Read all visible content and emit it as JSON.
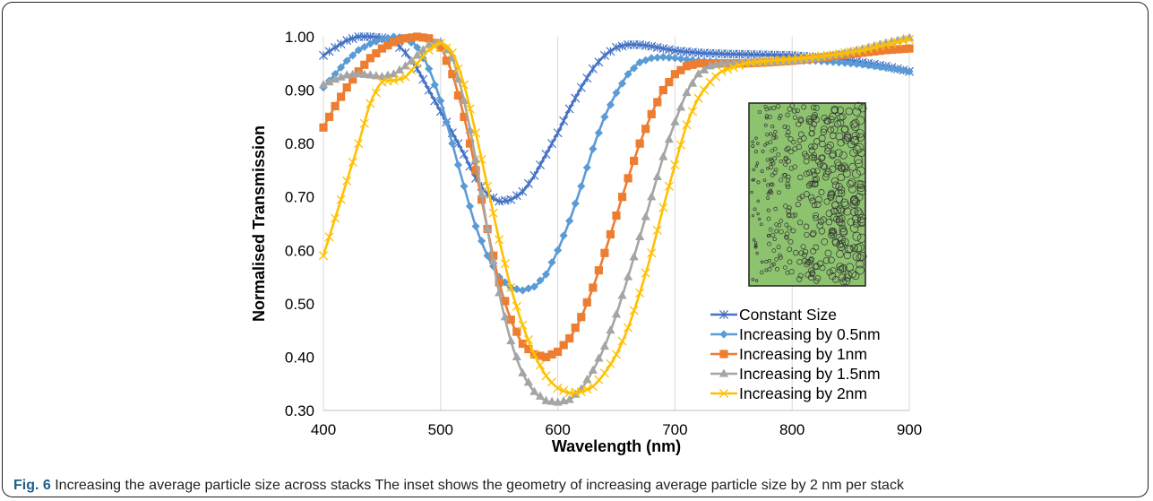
{
  "chart_data": {
    "type": "line",
    "title": "",
    "xlabel": "Wavelength (nm)",
    "ylabel": "Normalised Transmission",
    "xlim": [
      400,
      900
    ],
    "ylim": [
      0.3,
      1.0
    ],
    "x_ticks": [
      "400",
      "500",
      "600",
      "700",
      "800",
      "900"
    ],
    "y_ticks": [
      "0.30",
      "0.40",
      "0.50",
      "0.60",
      "0.70",
      "0.80",
      "0.90",
      "1.00"
    ],
    "grid": "vertical",
    "legend_position": "bottom-right",
    "series": [
      {
        "name": "Constant Size",
        "color": "#4472C4",
        "marker": "asterisk",
        "points": [
          [
            400,
            0.965
          ],
          [
            410,
            0.98
          ],
          [
            420,
            0.993
          ],
          [
            430,
            1.0
          ],
          [
            440,
            1.0
          ],
          [
            450,
            0.998
          ],
          [
            460,
            0.99
          ],
          [
            470,
            0.97
          ],
          [
            480,
            0.94
          ],
          [
            490,
            0.9
          ],
          [
            500,
            0.86
          ],
          [
            510,
            0.82
          ],
          [
            520,
            0.78
          ],
          [
            530,
            0.735
          ],
          [
            540,
            0.705
          ],
          [
            550,
            0.692
          ],
          [
            560,
            0.695
          ],
          [
            570,
            0.71
          ],
          [
            580,
            0.74
          ],
          [
            590,
            0.78
          ],
          [
            600,
            0.82
          ],
          [
            610,
            0.865
          ],
          [
            620,
            0.905
          ],
          [
            630,
            0.94
          ],
          [
            640,
            0.965
          ],
          [
            650,
            0.98
          ],
          [
            660,
            0.985
          ],
          [
            670,
            0.985
          ],
          [
            680,
            0.982
          ],
          [
            690,
            0.978
          ],
          [
            700,
            0.974
          ],
          [
            720,
            0.97
          ],
          [
            740,
            0.968
          ],
          [
            760,
            0.967
          ],
          [
            780,
            0.966
          ],
          [
            800,
            0.965
          ],
          [
            820,
            0.962
          ],
          [
            840,
            0.958
          ],
          [
            860,
            0.952
          ],
          [
            880,
            0.945
          ],
          [
            900,
            0.935
          ]
        ]
      },
      {
        "name": "Increasing by 0.5nm",
        "color": "#5B9BD5",
        "marker": "diamond",
        "points": [
          [
            400,
            0.905
          ],
          [
            410,
            0.93
          ],
          [
            420,
            0.955
          ],
          [
            430,
            0.975
          ],
          [
            440,
            0.987
          ],
          [
            450,
            0.995
          ],
          [
            460,
            1.0
          ],
          [
            470,
            0.998
          ],
          [
            480,
            0.98
          ],
          [
            490,
            0.94
          ],
          [
            500,
            0.88
          ],
          [
            510,
            0.8
          ],
          [
            520,
            0.72
          ],
          [
            530,
            0.645
          ],
          [
            540,
            0.59
          ],
          [
            550,
            0.55
          ],
          [
            560,
            0.53
          ],
          [
            570,
            0.525
          ],
          [
            580,
            0.532
          ],
          [
            590,
            0.555
          ],
          [
            600,
            0.6
          ],
          [
            610,
            0.655
          ],
          [
            620,
            0.72
          ],
          [
            630,
            0.79
          ],
          [
            640,
            0.85
          ],
          [
            650,
            0.895
          ],
          [
            660,
            0.93
          ],
          [
            670,
            0.952
          ],
          [
            680,
            0.96
          ],
          [
            690,
            0.962
          ],
          [
            700,
            0.96
          ],
          [
            720,
            0.955
          ],
          [
            740,
            0.952
          ],
          [
            760,
            0.952
          ],
          [
            780,
            0.953
          ],
          [
            800,
            0.955
          ],
          [
            820,
            0.955
          ],
          [
            840,
            0.952
          ],
          [
            860,
            0.948
          ],
          [
            880,
            0.942
          ],
          [
            900,
            0.935
          ]
        ]
      },
      {
        "name": "Increasing by 1nm",
        "color": "#ED7D31",
        "marker": "square",
        "points": [
          [
            400,
            0.83
          ],
          [
            410,
            0.87
          ],
          [
            420,
            0.905
          ],
          [
            430,
            0.935
          ],
          [
            440,
            0.96
          ],
          [
            450,
            0.978
          ],
          [
            460,
            0.99
          ],
          [
            470,
            0.997
          ],
          [
            480,
            1.0
          ],
          [
            490,
            0.997
          ],
          [
            500,
            0.98
          ],
          [
            510,
            0.93
          ],
          [
            520,
            0.85
          ],
          [
            530,
            0.75
          ],
          [
            540,
            0.64
          ],
          [
            550,
            0.54
          ],
          [
            560,
            0.47
          ],
          [
            570,
            0.425
          ],
          [
            580,
            0.405
          ],
          [
            590,
            0.4
          ],
          [
            600,
            0.41
          ],
          [
            610,
            0.435
          ],
          [
            620,
            0.475
          ],
          [
            630,
            0.53
          ],
          [
            640,
            0.595
          ],
          [
            650,
            0.665
          ],
          [
            660,
            0.735
          ],
          [
            670,
            0.8
          ],
          [
            680,
            0.855
          ],
          [
            690,
            0.9
          ],
          [
            700,
            0.93
          ],
          [
            710,
            0.945
          ],
          [
            720,
            0.95
          ],
          [
            740,
            0.95
          ],
          [
            760,
            0.95
          ],
          [
            780,
            0.952
          ],
          [
            800,
            0.955
          ],
          [
            820,
            0.96
          ],
          [
            840,
            0.965
          ],
          [
            860,
            0.97
          ],
          [
            880,
            0.975
          ],
          [
            900,
            0.978
          ]
        ]
      },
      {
        "name": "Increasing by 1.5nm",
        "color": "#A5A5A5",
        "marker": "triangle",
        "points": [
          [
            400,
            0.91
          ],
          [
            410,
            0.92
          ],
          [
            420,
            0.928
          ],
          [
            430,
            0.93
          ],
          [
            440,
            0.928
          ],
          [
            450,
            0.925
          ],
          [
            460,
            0.93
          ],
          [
            470,
            0.945
          ],
          [
            480,
            0.965
          ],
          [
            490,
            0.985
          ],
          [
            500,
            0.99
          ],
          [
            510,
            0.96
          ],
          [
            520,
            0.88
          ],
          [
            530,
            0.77
          ],
          [
            540,
            0.64
          ],
          [
            550,
            0.52
          ],
          [
            560,
            0.43
          ],
          [
            570,
            0.37
          ],
          [
            580,
            0.335
          ],
          [
            590,
            0.318
          ],
          [
            600,
            0.315
          ],
          [
            610,
            0.32
          ],
          [
            620,
            0.34
          ],
          [
            630,
            0.375
          ],
          [
            640,
            0.42
          ],
          [
            650,
            0.48
          ],
          [
            660,
            0.55
          ],
          [
            670,
            0.625
          ],
          [
            680,
            0.7
          ],
          [
            690,
            0.775
          ],
          [
            700,
            0.84
          ],
          [
            710,
            0.895
          ],
          [
            720,
            0.93
          ],
          [
            730,
            0.945
          ],
          [
            740,
            0.95
          ],
          [
            760,
            0.952
          ],
          [
            780,
            0.952
          ],
          [
            800,
            0.955
          ],
          [
            820,
            0.96
          ],
          [
            840,
            0.967
          ],
          [
            860,
            0.977
          ],
          [
            880,
            0.988
          ],
          [
            900,
            0.998
          ]
        ]
      },
      {
        "name": "Increasing by 2nm",
        "color": "#FFC000",
        "marker": "cross",
        "points": [
          [
            400,
            0.59
          ],
          [
            410,
            0.66
          ],
          [
            420,
            0.73
          ],
          [
            430,
            0.8
          ],
          [
            440,
            0.875
          ],
          [
            450,
            0.915
          ],
          [
            460,
            0.918
          ],
          [
            470,
            0.925
          ],
          [
            480,
            0.95
          ],
          [
            490,
            0.975
          ],
          [
            500,
            0.988
          ],
          [
            510,
            0.97
          ],
          [
            520,
            0.91
          ],
          [
            530,
            0.82
          ],
          [
            540,
            0.72
          ],
          [
            550,
            0.62
          ],
          [
            560,
            0.53
          ],
          [
            570,
            0.46
          ],
          [
            580,
            0.405
          ],
          [
            590,
            0.365
          ],
          [
            600,
            0.342
          ],
          [
            610,
            0.333
          ],
          [
            620,
            0.335
          ],
          [
            630,
            0.345
          ],
          [
            640,
            0.37
          ],
          [
            650,
            0.405
          ],
          [
            660,
            0.455
          ],
          [
            670,
            0.52
          ],
          [
            680,
            0.595
          ],
          [
            690,
            0.68
          ],
          [
            700,
            0.76
          ],
          [
            710,
            0.835
          ],
          [
            720,
            0.885
          ],
          [
            730,
            0.915
          ],
          [
            740,
            0.935
          ],
          [
            760,
            0.95
          ],
          [
            780,
            0.955
          ],
          [
            800,
            0.958
          ],
          [
            820,
            0.962
          ],
          [
            840,
            0.968
          ],
          [
            860,
            0.975
          ],
          [
            880,
            0.985
          ],
          [
            900,
            0.995
          ]
        ]
      }
    ]
  },
  "caption": {
    "label": "Fig. 6",
    "text": " Increasing the average particle size across stacks The inset shows the geometry of increasing average particle size by 2 nm per stack"
  },
  "inset": {
    "background_color": "#8DC26F",
    "border_color": "#222222"
  }
}
